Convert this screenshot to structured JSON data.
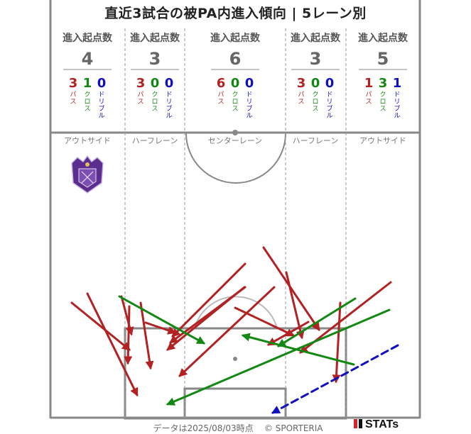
{
  "title": "直近3試合の被PA内進入傾向 | 5レーン別",
  "footer": {
    "timestamp": "データは2025/08/03時点",
    "copyright": "© SPORTERIA",
    "logo": "STATs"
  },
  "colors": {
    "pass": "#b22222",
    "cross": "#118811",
    "dribble": "#1010c0",
    "pitch_line": "#888888",
    "lane_divider": "#999999",
    "badge_purple": "#5b2d8e"
  },
  "stat_header_label": "進入起点数",
  "type_labels": {
    "pass": "パス",
    "cross": "クロス",
    "dribble": "ドリブル"
  },
  "chart_data": {
    "type": "pitch-arrows",
    "title": "直近3試合の被PA内進入傾向 | 5レーン別",
    "legend": [
      "パス",
      "クロス",
      "ドリブル"
    ],
    "lanes": [
      {
        "name": "アウトサイド",
        "total": "4",
        "pass": "3",
        "cross": "1",
        "dribble": "0"
      },
      {
        "name": "ハーフレーン",
        "total": "3",
        "pass": "3",
        "cross": "0",
        "dribble": "0"
      },
      {
        "name": "センターレーン",
        "total": "6",
        "pass": "6",
        "cross": "0",
        "dribble": "0"
      },
      {
        "name": "ハーフレーン",
        "total": "3",
        "pass": "3",
        "cross": "0",
        "dribble": "0"
      },
      {
        "name": "アウトサイド",
        "total": "5",
        "pass": "1",
        "cross": "3",
        "dribble": "1"
      }
    ],
    "arrows": [
      {
        "type": "pass",
        "from": [
          101,
          427
        ],
        "to": [
          182,
          493
        ]
      },
      {
        "type": "pass",
        "from": [
          123,
          414
        ],
        "to": [
          193,
          557
        ]
      },
      {
        "type": "pass",
        "from": [
          171,
          418
        ],
        "to": [
          185,
          471
        ]
      },
      {
        "type": "pass",
        "from": [
          182,
          432
        ],
        "to": [
          180,
          512
        ]
      },
      {
        "type": "pass",
        "from": [
          198,
          427
        ],
        "to": [
          212,
          519
        ]
      },
      {
        "type": "pass",
        "from": [
          205,
          455
        ],
        "to": [
          246,
          469
        ]
      },
      {
        "type": "pass",
        "from": [
          345,
          372
        ],
        "to": [
          243,
          474
        ]
      },
      {
        "type": "pass",
        "from": [
          345,
          405
        ],
        "to": [
          240,
          483
        ]
      },
      {
        "type": "pass",
        "from": [
          344,
          405
        ],
        "to": [
          236,
          493
        ]
      },
      {
        "type": "pass",
        "from": [
          386,
          405
        ],
        "to": [
          253,
          530
        ]
      },
      {
        "type": "pass",
        "from": [
          371,
          349
        ],
        "to": [
          449,
          465
        ]
      },
      {
        "type": "pass",
        "from": [
          403,
          384
        ],
        "to": [
          425,
          476
        ]
      },
      {
        "type": "pass",
        "from": [
          331,
          434
        ],
        "to": [
          413,
          473
        ]
      },
      {
        "type": "pass",
        "from": [
          550,
          398
        ],
        "to": [
          423,
          497
        ]
      },
      {
        "type": "pass",
        "from": [
          434,
          454
        ],
        "to": [
          378,
          486
        ]
      },
      {
        "type": "pass",
        "from": [
          479,
          427
        ],
        "to": [
          473,
          538
        ]
      },
      {
        "type": "cross",
        "from": [
          168,
          418
        ],
        "to": [
          287,
          484
        ]
      },
      {
        "type": "cross",
        "from": [
          548,
          437
        ],
        "to": [
          236,
          570
        ]
      },
      {
        "type": "cross",
        "from": [
          498,
          514
        ],
        "to": [
          342,
          473
        ]
      },
      {
        "type": "cross",
        "from": [
          500,
          421
        ],
        "to": [
          392,
          488
        ]
      },
      {
        "type": "dribble",
        "from": [
          560,
          487
        ],
        "to": [
          384,
          582
        ]
      }
    ]
  }
}
